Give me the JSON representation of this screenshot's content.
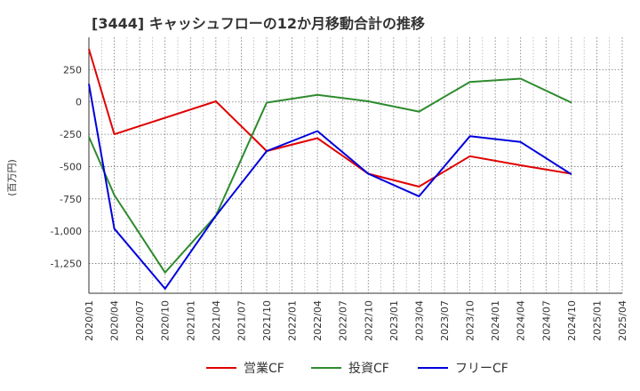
{
  "chart_data": {
    "type": "line",
    "title": "[3444]  キャッシュフローの12か月移動合計の推移",
    "ylabel": "(百万円)",
    "xlabel": "",
    "ylim": [
      -1480,
      500
    ],
    "yticks": [
      250,
      0,
      -250,
      -500,
      -750,
      -1000,
      -1250
    ],
    "ytick_labels": [
      "250",
      "0",
      "-250",
      "-500",
      "-750",
      "-1,000",
      "-1,250"
    ],
    "categories": [
      "2020/01",
      "2020/04",
      "2020/07",
      "2020/10",
      "2021/01",
      "2021/04",
      "2021/07",
      "2021/10",
      "2022/01",
      "2022/04",
      "2022/07",
      "2022/10",
      "2023/01",
      "2023/04",
      "2023/07",
      "2023/10",
      "2024/01",
      "2024/04",
      "2024/07",
      "2024/10",
      "2025/01",
      "2025/04"
    ],
    "grid": true,
    "legend": "bottom",
    "series": [
      {
        "name": "営業CF",
        "color": "#e00000",
        "values": [
          410,
          -250,
          null,
          null,
          null,
          5,
          null,
          -380,
          null,
          -280,
          null,
          -555,
          null,
          -655,
          null,
          -420,
          null,
          -490,
          null,
          -555,
          null,
          null
        ]
      },
      {
        "name": "投資CF",
        "color": "#2e8b2e",
        "values": [
          -270,
          -720,
          null,
          -1320,
          null,
          -880,
          null,
          -5,
          null,
          55,
          null,
          5,
          null,
          -75,
          null,
          155,
          null,
          180,
          null,
          -5,
          null,
          null
        ]
      },
      {
        "name": "フリーCF",
        "color": "#0000dd",
        "values": [
          140,
          -980,
          null,
          -1445,
          null,
          -880,
          null,
          -380,
          null,
          -225,
          null,
          -555,
          null,
          -730,
          null,
          -265,
          null,
          -310,
          null,
          -560,
          null,
          null
        ]
      }
    ]
  }
}
